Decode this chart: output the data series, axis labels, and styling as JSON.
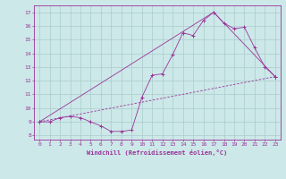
{
  "xlabel": "Windchill (Refroidissement éolien,°C)",
  "bg_color": "#cce8e8",
  "line_color": "#993399",
  "grid_color": "#aacccc",
  "xlim": [
    -0.5,
    23.5
  ],
  "ylim": [
    7.7,
    17.5
  ],
  "xticks": [
    0,
    1,
    2,
    3,
    4,
    5,
    6,
    7,
    8,
    9,
    10,
    11,
    12,
    13,
    14,
    15,
    16,
    17,
    18,
    19,
    20,
    21,
    22,
    23
  ],
  "yticks": [
    8,
    9,
    10,
    11,
    12,
    13,
    14,
    15,
    16,
    17
  ],
  "line1_x": [
    0,
    1,
    2,
    3,
    4,
    5,
    6,
    7,
    8,
    9,
    10,
    11,
    12,
    13,
    14,
    15,
    16,
    17,
    18,
    19,
    20,
    21,
    22,
    23
  ],
  "line1_y": [
    9.0,
    9.0,
    9.3,
    9.4,
    9.3,
    9.0,
    8.7,
    8.3,
    8.3,
    8.4,
    10.8,
    12.4,
    12.5,
    13.9,
    15.5,
    15.3,
    16.4,
    17.0,
    16.2,
    15.8,
    15.9,
    14.4,
    13.0,
    12.3
  ],
  "line2_x": [
    0,
    23
  ],
  "line2_y": [
    9.0,
    12.3
  ],
  "line3_x": [
    0,
    17,
    23
  ],
  "line3_y": [
    9.0,
    17.0,
    12.3
  ]
}
